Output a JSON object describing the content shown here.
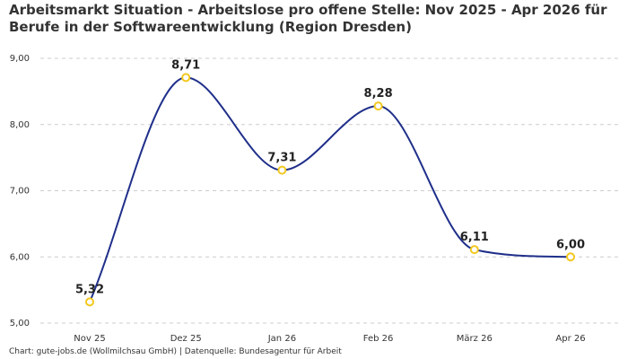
{
  "chart_data": {
    "type": "line",
    "title": [
      "Arbeitsmarkt Situation - Arbeitslose pro offene Stelle: Nov 2025 - Apr 2026 für",
      "Berufe in der Softwareentwicklung (Region Dresden)"
    ],
    "categories": [
      "Nov 25",
      "Dez 25",
      "Jan 26",
      "Feb 26",
      "März 26",
      "Apr 26"
    ],
    "values": [
      5.32,
      8.71,
      7.31,
      8.28,
      6.11,
      6.0
    ],
    "data_labels": [
      "5,32",
      "8,71",
      "7,31",
      "8,28",
      "6,11",
      "6,00"
    ],
    "y_ticks": [
      5,
      6,
      7,
      8,
      9
    ],
    "y_tick_labels": [
      "5,00",
      "6,00",
      "7,00",
      "8,00",
      "9,00"
    ],
    "ylim": [
      5,
      9
    ],
    "grid": true,
    "line_color": "#1f2f8a",
    "marker_color": "#f2c81e",
    "grid_color": "#cccccc"
  },
  "source_note": "Chart: gute-jobs.de (Wollmilchsau GmbH) | Datenquelle: Bundesagentur für Arbeit"
}
